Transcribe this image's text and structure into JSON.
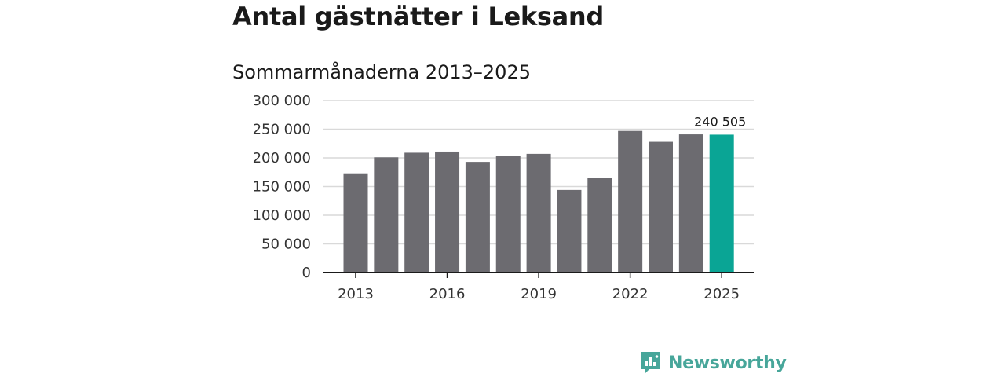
{
  "chart_data": {
    "type": "bar",
    "title": "Antal gästnätter i Leksand",
    "subtitle": "Sommarmånaderna 2013–2025",
    "categories": [
      "2013",
      "2014",
      "2015",
      "2016",
      "2017",
      "2018",
      "2019",
      "2020",
      "2021",
      "2022",
      "2023",
      "2024",
      "2025"
    ],
    "x_tick_labels": [
      "2013",
      "2016",
      "2019",
      "2022",
      "2025"
    ],
    "values": [
      173000,
      201000,
      209000,
      211000,
      193000,
      203000,
      207000,
      144000,
      165000,
      247000,
      228000,
      241000,
      240505
    ],
    "highlight_index": 12,
    "highlight_label": "240 505",
    "y_ticks": [
      0,
      50000,
      100000,
      150000,
      200000,
      250000,
      300000
    ],
    "y_tick_labels": [
      "0",
      "50 000",
      "100 000",
      "150 000",
      "200 000",
      "250 000",
      "300 000"
    ],
    "ylim": [
      0,
      300000
    ],
    "grid": true,
    "xlabel": "",
    "ylabel": ""
  },
  "colors": {
    "bar": "#6c6b70",
    "highlight": "#0aa595",
    "grid": "#d9d9d9",
    "axis": "#1a1a1a"
  },
  "logo": {
    "text": "Newsworthy"
  }
}
